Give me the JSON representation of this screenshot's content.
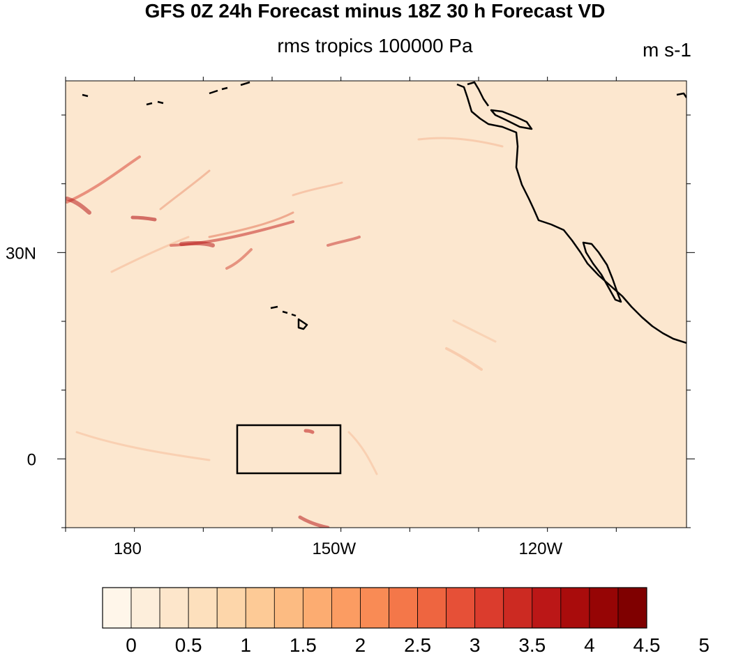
{
  "title": "GFS 0Z 24h Forecast minus 18Z 30 h Forecast VD",
  "subtitle": "rms tropics 100000 Pa",
  "units": "m s-1",
  "map": {
    "lon_ticks": [
      {
        "lon": 180,
        "label": "180"
      },
      {
        "lon": -150,
        "label": "150W"
      },
      {
        "lon": -120,
        "label": "120W"
      }
    ],
    "lat_ticks": [
      {
        "lat": 30,
        "label": "30N"
      },
      {
        "lat": 0,
        "label": "0"
      }
    ],
    "box_region": {
      "lon_min": -165,
      "lon_max": -150,
      "lat_min": -2,
      "lat_max": 5
    }
  },
  "colorbar": {
    "labels": [
      "0",
      "0.5",
      "1",
      "1.5",
      "2",
      "2.5",
      "3",
      "3.5",
      "4",
      "4.5",
      "5"
    ],
    "colors": [
      "#fff6ea",
      "#fdeedb",
      "#fde6cb",
      "#fde0bd",
      "#fdd6aa",
      "#fdca96",
      "#fcbb82",
      "#fcac71",
      "#fb9c62",
      "#f98b55",
      "#f47749",
      "#ee6540",
      "#e65037",
      "#db3c2d",
      "#cc2a22",
      "#bb1717",
      "#a90c0c",
      "#960505",
      "#7f0000"
    ]
  },
  "colors": {
    "field_base": "#fce7cf",
    "coast": "#000000"
  }
}
